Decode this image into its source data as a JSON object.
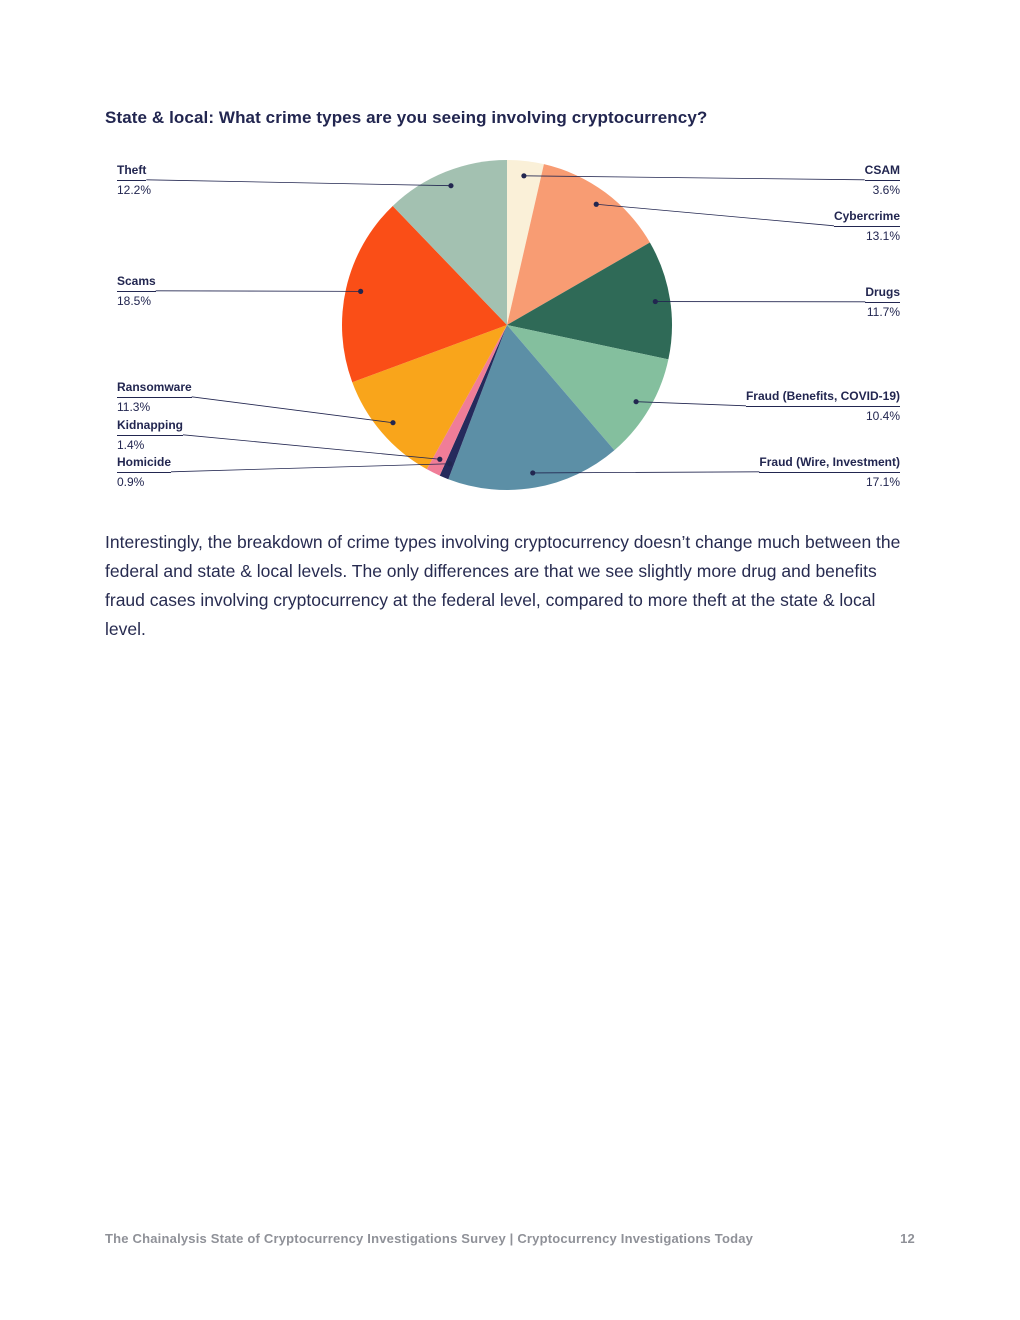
{
  "page": {
    "title": "State & local: What crime types are you seeing involving cryptocurrency?",
    "body_paragraph": "Interestingly, the breakdown of crime types involving cryptocurrency doesn’t change much between the federal and state & local levels. The only differences are that we see slightly more drug and benefits fraud cases involving cryptocurrency at the federal level, compared to more theft at the state & local level.",
    "footer": {
      "text": "The Chainalysis State of Cryptocurrency Investigations Survey | Cryptocurrency Investigations Today",
      "page_number": "12"
    }
  },
  "chart_data": {
    "type": "pie",
    "title": "State & local: What crime types are you seeing involving cryptocurrency?",
    "start_angle_deg": -90,
    "direction": "clockwise",
    "legend_position": "outside-callout-labels",
    "line_color": "#222650",
    "slices": [
      {
        "label": "CSAM",
        "value": 3.6,
        "pct_label": "3.6%",
        "color": "#FAF0D8"
      },
      {
        "label": "Cybercrime",
        "value": 13.1,
        "pct_label": "13.1%",
        "color": "#F89C73"
      },
      {
        "label": "Drugs",
        "value": 11.7,
        "pct_label": "11.7%",
        "color": "#2F6A57"
      },
      {
        "label": "Fraud (Benefits, COVID-19)",
        "value": 10.4,
        "pct_label": "10.4%",
        "color": "#84BF9E"
      },
      {
        "label": "Fraud (Wire, Investment)",
        "value": 17.1,
        "pct_label": "17.1%",
        "color": "#5C8FA6"
      },
      {
        "label": "Homicide",
        "value": 0.9,
        "pct_label": "0.9%",
        "color": "#252A5C"
      },
      {
        "label": "Kidnapping",
        "value": 1.4,
        "pct_label": "1.4%",
        "color": "#F07D98"
      },
      {
        "label": "Ransomware",
        "value": 11.3,
        "pct_label": "11.3%",
        "color": "#F9A51B"
      },
      {
        "label": "Scams",
        "value": 18.5,
        "pct_label": "18.5%",
        "color": "#FA4E17"
      },
      {
        "label": "Theft",
        "value": 12.2,
        "pct_label": "12.2%",
        "color": "#A3C1B1"
      }
    ]
  }
}
